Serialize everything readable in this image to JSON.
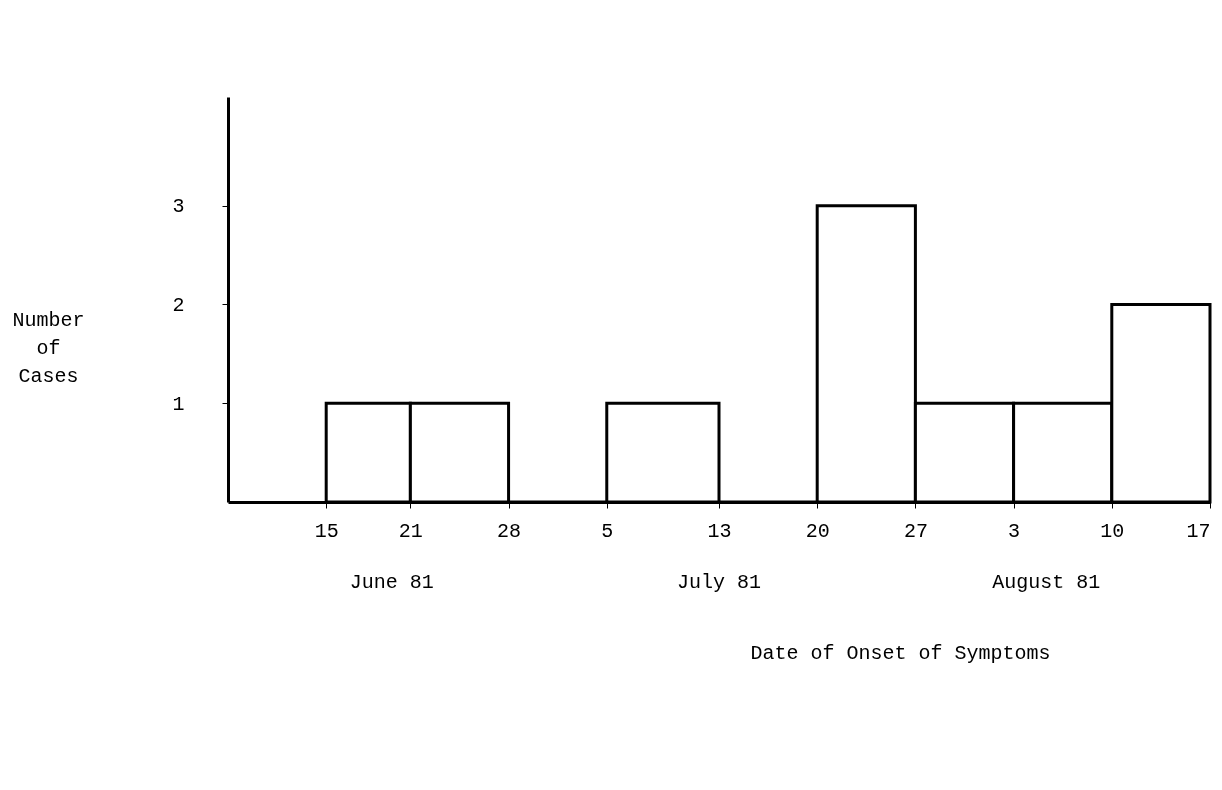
{
  "chart_data": {
    "type": "histogram",
    "xlabel": "Date of Onset of Symptoms",
    "ylabel": "Number of Cases",
    "bins": [
      "--06-15",
      "--06-21",
      "--06-28",
      "--07-05",
      "--07-13",
      "--07-20",
      "--07-27",
      "--08-03",
      "--08-10",
      "--08-17"
    ],
    "values": [
      1,
      1,
      0,
      1,
      0,
      3,
      1,
      1,
      2
    ],
    "color": "#ffffff",
    "xlim": [
      "--06-08",
      "--08-17"
    ],
    "xticks": [
      {
        "value": "--06-15",
        "label": "15"
      },
      {
        "value": "--06-21",
        "label": "21"
      },
      {
        "value": "--06-28",
        "label": "28"
      },
      {
        "value": "--07-05",
        "label": "5"
      },
      {
        "value": "--07-13",
        "label": "13"
      },
      {
        "value": "--07-20",
        "label": "20"
      },
      {
        "value": "--07-27",
        "label": "27"
      },
      {
        "value": "--08-03",
        "label": "3"
      },
      {
        "value": "--08-10",
        "label": "10"
      },
      {
        "value": "--08-17",
        "label": "17"
      }
    ],
    "ylim": [
      0,
      4.1
    ],
    "yticks": [
      1,
      2,
      3
    ],
    "annotations": [
      "June 81",
      "July 81",
      "August 81"
    ],
    "grid": false
  }
}
